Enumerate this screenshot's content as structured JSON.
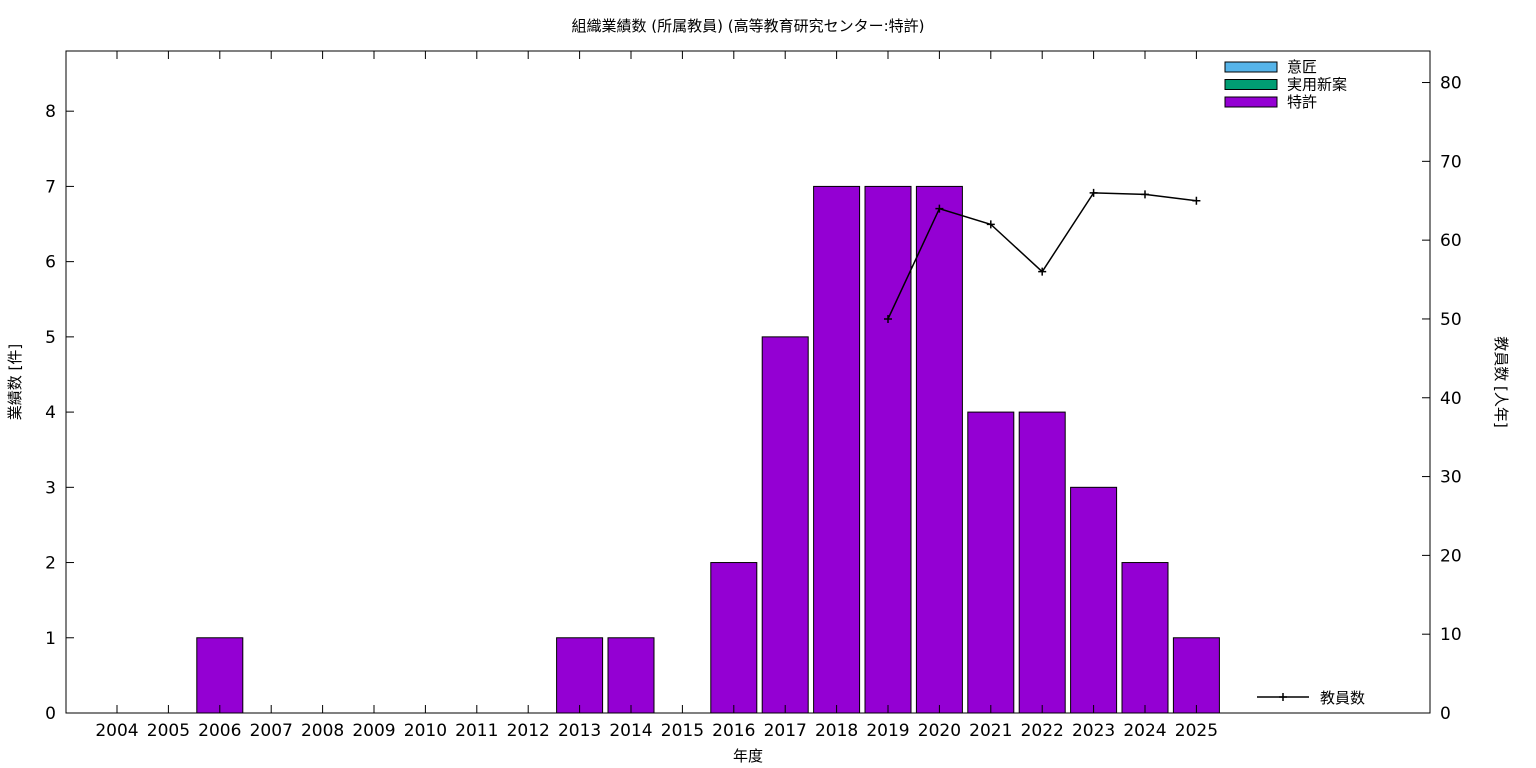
{
  "chart_data": {
    "type": "bar",
    "title": "組織業績数 (所属教員) (高等教育研究センター:特許)",
    "xlabel": "年度",
    "ylabel": "業績数 [件]",
    "y2label": "教員数 [人年]",
    "categories": [
      "2004",
      "2005",
      "2006",
      "2007",
      "2008",
      "2009",
      "2010",
      "2011",
      "2012",
      "2013",
      "2014",
      "2015",
      "2016",
      "2017",
      "2018",
      "2019",
      "2020",
      "2021",
      "2022",
      "2023",
      "2024",
      "2025"
    ],
    "ylim": [
      0,
      8.8
    ],
    "yticks": [
      0,
      1,
      2,
      3,
      4,
      5,
      6,
      7,
      8
    ],
    "y2lim": [
      0,
      84
    ],
    "y2ticks": [
      0,
      10,
      20,
      30,
      40,
      50,
      60,
      70,
      80
    ],
    "grid": false,
    "legend_position": "top-right",
    "series": [
      {
        "name": "意匠",
        "type": "bar",
        "color": "#56b4e9",
        "values": [
          0,
          0,
          0,
          0,
          0,
          0,
          0,
          0,
          0,
          0,
          0,
          0,
          0,
          0,
          0,
          0,
          0,
          0,
          0,
          0,
          0,
          0
        ]
      },
      {
        "name": "実用新案",
        "type": "bar",
        "color": "#009e73",
        "values": [
          0,
          0,
          0,
          0,
          0,
          0,
          0,
          0,
          0,
          0,
          0,
          0,
          0,
          0,
          0,
          0,
          0,
          0,
          0,
          0,
          0,
          0
        ]
      },
      {
        "name": "特許",
        "type": "bar",
        "color": "#9400d3",
        "values": [
          0,
          0,
          1,
          0,
          0,
          0,
          0,
          0,
          0,
          1,
          1,
          0,
          2,
          5,
          7,
          7,
          7,
          4,
          4,
          3,
          2,
          1
        ]
      }
    ],
    "line_series": {
      "name": "教員数",
      "axis": "y2",
      "color": "#000000",
      "points": [
        {
          "x": "2019",
          "y": 50
        },
        {
          "x": "2020",
          "y": 64
        },
        {
          "x": "2021",
          "y": 62
        },
        {
          "x": "2022",
          "y": 56
        },
        {
          "x": "2023",
          "y": 66
        },
        {
          "x": "2024",
          "y": 65.8
        },
        {
          "x": "2025",
          "y": 65
        }
      ]
    }
  }
}
